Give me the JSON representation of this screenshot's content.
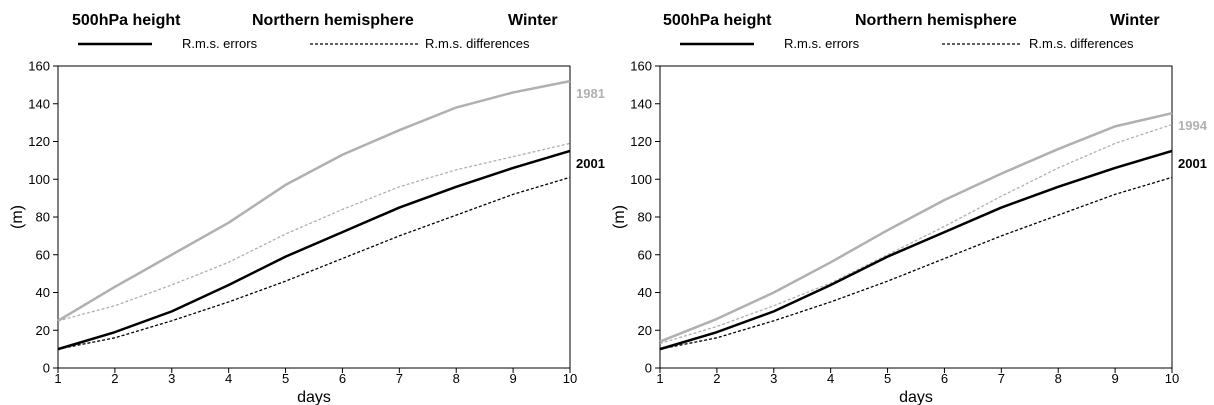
{
  "colors": {
    "gray": "#b0b0b0",
    "black": "#000000"
  },
  "chart_data": [
    {
      "type": "line",
      "header": [
        "500hPa height",
        "Northern hemisphere",
        "Winter"
      ],
      "legend": [
        "R.m.s. errors",
        "R.m.s. differences"
      ],
      "xlabel": "days",
      "ylabel": "(m)",
      "xlim": [
        1,
        10
      ],
      "ylim": [
        0,
        160
      ],
      "xticks": [
        1,
        2,
        3,
        4,
        5,
        6,
        7,
        8,
        9,
        10
      ],
      "yticks": [
        0,
        20,
        40,
        60,
        80,
        100,
        120,
        140,
        160
      ],
      "x": [
        1,
        2,
        3,
        4,
        5,
        6,
        7,
        8,
        9,
        10
      ],
      "series": [
        {
          "name": "1981",
          "kind": "errors",
          "color": "#b0b0b0",
          "values": [
            25,
            43,
            60,
            77,
            97,
            113,
            126,
            138,
            146,
            152
          ]
        },
        {
          "name": "1981",
          "kind": "differences",
          "color": "#b0b0b0",
          "values": [
            25,
            33,
            44,
            56,
            71,
            84,
            96,
            105,
            112,
            119
          ]
        },
        {
          "name": "2001",
          "kind": "errors",
          "color": "#000000",
          "values": [
            10,
            19,
            30,
            44,
            59,
            72,
            85,
            96,
            106,
            115
          ]
        },
        {
          "name": "2001",
          "kind": "differences",
          "color": "#000000",
          "values": [
            10,
            16,
            25,
            35,
            46,
            58,
            70,
            81,
            92,
            101
          ]
        }
      ],
      "end_labels": [
        "1981",
        "2001"
      ]
    },
    {
      "type": "line",
      "header": [
        "500hPa height",
        "Northern hemisphere",
        "Winter"
      ],
      "legend": [
        "R.m.s. errors",
        "R.m.s. differences"
      ],
      "xlabel": "days",
      "ylabel": "(m)",
      "xlim": [
        1,
        10
      ],
      "ylim": [
        0,
        160
      ],
      "xticks": [
        1,
        2,
        3,
        4,
        5,
        6,
        7,
        8,
        9,
        10
      ],
      "yticks": [
        0,
        20,
        40,
        60,
        80,
        100,
        120,
        140,
        160
      ],
      "x": [
        1,
        2,
        3,
        4,
        5,
        6,
        7,
        8,
        9,
        10
      ],
      "series": [
        {
          "name": "1994",
          "kind": "errors",
          "color": "#b0b0b0",
          "values": [
            14,
            26,
            40,
            56,
            73,
            89,
            103,
            116,
            128,
            135
          ]
        },
        {
          "name": "1994",
          "kind": "differences",
          "color": "#b0b0b0",
          "values": [
            13,
            22,
            33,
            45,
            60,
            75,
            91,
            106,
            119,
            129
          ]
        },
        {
          "name": "2001",
          "kind": "errors",
          "color": "#000000",
          "values": [
            10,
            19,
            30,
            44,
            59,
            72,
            85,
            96,
            106,
            115
          ]
        },
        {
          "name": "2001",
          "kind": "differences",
          "color": "#000000",
          "values": [
            10,
            16,
            25,
            35,
            46,
            58,
            70,
            81,
            92,
            101
          ]
        }
      ],
      "end_labels": [
        "1994",
        "2001"
      ]
    }
  ]
}
